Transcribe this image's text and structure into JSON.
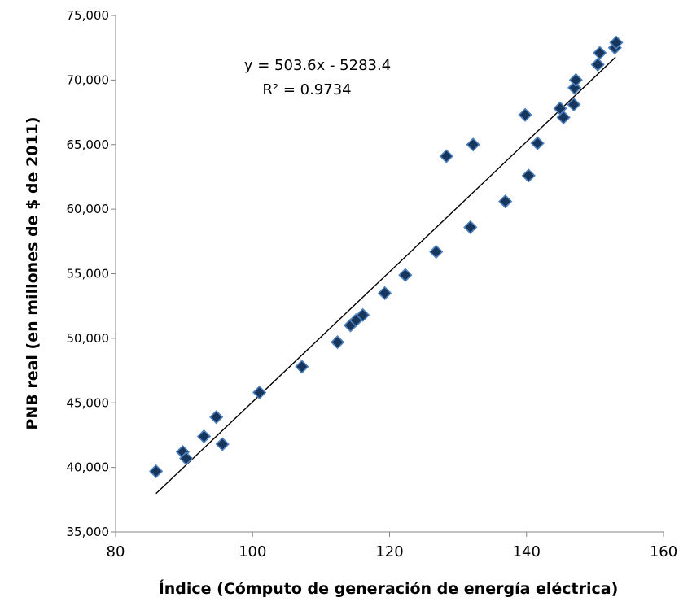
{
  "chart_data": {
    "type": "scatter",
    "title": "",
    "xlabel": "Índice (Cómputo de generación de energía eléctrica)",
    "ylabel": "PNB real (en millones de $ de 2011)",
    "xlim": [
      80,
      160
    ],
    "ylim": [
      35000,
      75000
    ],
    "x_ticks": [
      80,
      100,
      120,
      140,
      160
    ],
    "y_ticks": [
      35000,
      40000,
      45000,
      50000,
      55000,
      60000,
      65000,
      70000,
      75000
    ],
    "x_tick_labels": [
      "80",
      "100",
      "120",
      "140",
      "160"
    ],
    "y_tick_labels": [
      "35,000",
      "40,000",
      "45,000",
      "50,000",
      "55,000",
      "60,000",
      "65,000",
      "70,000",
      "75,000"
    ],
    "grid": false,
    "marker": "diamond",
    "marker_color": "#17365d",
    "marker_edge_color": "#4f81bd",
    "series": [
      {
        "x": [
          85.9,
          89.8,
          90.3,
          92.9,
          94.7,
          95.6,
          101.0,
          107.2,
          112.4,
          114.3,
          115.1,
          116.1,
          119.3,
          122.3,
          126.8,
          128.3,
          131.8,
          132.2,
          136.9,
          139.8,
          140.3,
          141.6,
          144.9,
          145.4,
          146.9,
          147.0,
          147.2,
          150.4,
          150.7,
          152.9,
          153.1
        ],
        "y": [
          39700,
          41200,
          40700,
          42400,
          43900,
          41800,
          45800,
          47800,
          49700,
          51000,
          51400,
          51800,
          53500,
          54900,
          56700,
          64100,
          58600,
          65000,
          60600,
          67300,
          62600,
          65100,
          67800,
          67100,
          68100,
          69400,
          70000,
          71200,
          72100,
          72500,
          72900
        ]
      }
    ],
    "trendline": {
      "x_range": [
        85.9,
        153.0
      ],
      "slope": 503.6,
      "intercept": -5283.4
    },
    "equation_lines": [
      "y = 503.6x - 5283.4",
      "R² = 0.9734"
    ]
  }
}
